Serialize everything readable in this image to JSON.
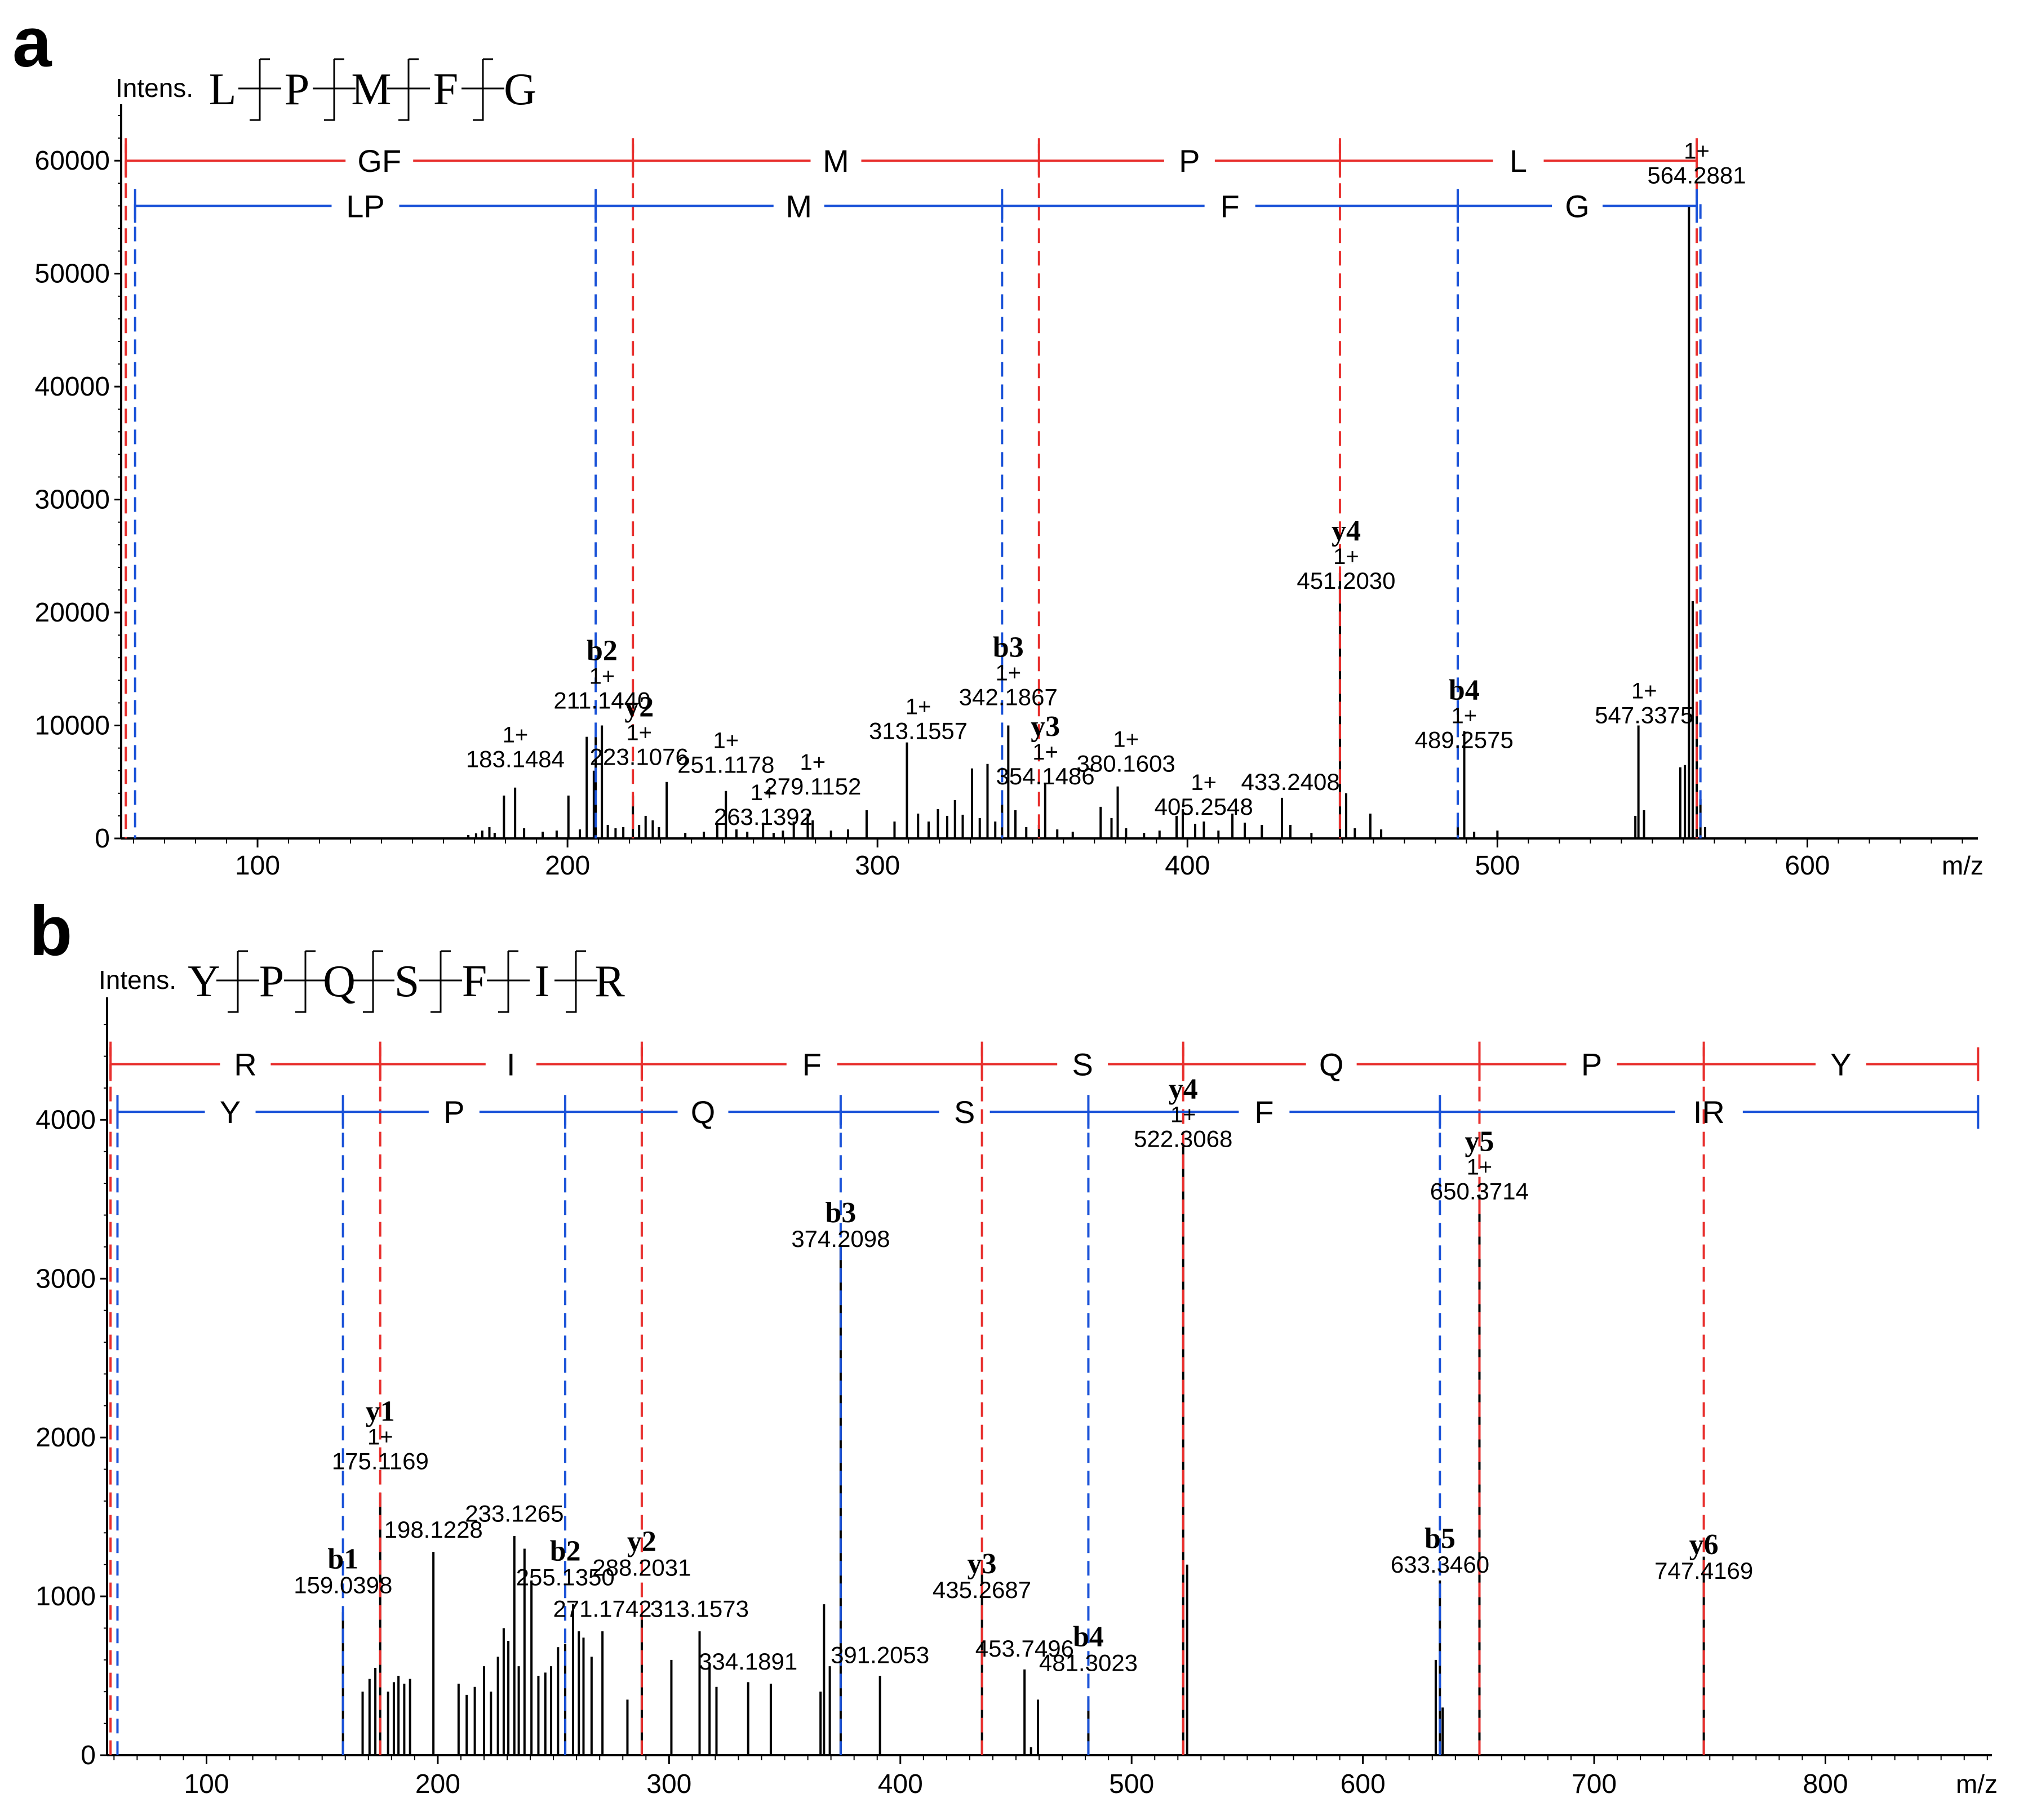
{
  "chart_data": [
    {
      "panel": "a",
      "type": "bar",
      "ylabel": "Intens.",
      "xlabel": "m/z",
      "sequence": [
        "L",
        "P",
        "M",
        "F",
        "G"
      ],
      "xlim": [
        56,
        655
      ],
      "ylim": [
        0,
        64000
      ],
      "x_ticks": [
        100,
        200,
        300,
        400,
        500,
        600
      ],
      "y_ticks": [
        0,
        10000,
        20000,
        30000,
        40000,
        50000,
        60000
      ],
      "y_ladder": {
        "color": "#e8302e",
        "y": 60000,
        "boundaries": [
          57.5,
          221.1,
          352.1,
          449.2,
          564.3
        ],
        "labels": [
          "GF",
          "M",
          "P",
          "L"
        ]
      },
      "b_ladder": {
        "color": "#1a52d8",
        "y": 56000,
        "boundaries": [
          60.5,
          209.1,
          340.2,
          487.2,
          564.3
        ],
        "labels": [
          "LP",
          "M",
          "F",
          "G"
        ]
      },
      "ion_lines": [
        {
          "x": 57.5,
          "color": "#e8302e"
        },
        {
          "x": 221.1,
          "color": "#e8302e"
        },
        {
          "x": 352.1,
          "color": "#e8302e"
        },
        {
          "x": 449.2,
          "color": "#e8302e"
        },
        {
          "x": 564.3,
          "color": "#e8302e"
        },
        {
          "x": 60.5,
          "color": "#1a52d8"
        },
        {
          "x": 209.1,
          "color": "#1a52d8"
        },
        {
          "x": 340.2,
          "color": "#1a52d8"
        },
        {
          "x": 487.2,
          "color": "#1a52d8"
        },
        {
          "x": 565.5,
          "color": "#1a52d8"
        }
      ],
      "peaks": [
        {
          "mz": 168.0,
          "i": 300
        },
        {
          "mz": 170.5,
          "i": 450
        },
        {
          "mz": 172.5,
          "i": 700
        },
        {
          "mz": 174.8,
          "i": 1000
        },
        {
          "mz": 176.5,
          "i": 500
        },
        {
          "mz": 179.5,
          "i": 3800
        },
        {
          "mz": 183.1,
          "i": 4500
        },
        {
          "mz": 186.0,
          "i": 900
        },
        {
          "mz": 192.0,
          "i": 600
        },
        {
          "mz": 196.5,
          "i": 700
        },
        {
          "mz": 200.3,
          "i": 3800
        },
        {
          "mz": 204.0,
          "i": 800
        },
        {
          "mz": 206.2,
          "i": 9000
        },
        {
          "mz": 208.5,
          "i": 6000
        },
        {
          "mz": 209.1,
          "i": 9000
        },
        {
          "mz": 211.1,
          "i": 10000
        },
        {
          "mz": 213.0,
          "i": 1200
        },
        {
          "mz": 215.5,
          "i": 900
        },
        {
          "mz": 218.0,
          "i": 1000
        },
        {
          "mz": 221.1,
          "i": 3800
        },
        {
          "mz": 223.1,
          "i": 1200
        },
        {
          "mz": 225.2,
          "i": 2000
        },
        {
          "mz": 227.5,
          "i": 1600
        },
        {
          "mz": 229.5,
          "i": 1000
        },
        {
          "mz": 232.0,
          "i": 5000
        },
        {
          "mz": 238.0,
          "i": 500
        },
        {
          "mz": 244.0,
          "i": 600
        },
        {
          "mz": 248.3,
          "i": 1200
        },
        {
          "mz": 251.1,
          "i": 4200
        },
        {
          "mz": 254.5,
          "i": 800
        },
        {
          "mz": 258.0,
          "i": 600
        },
        {
          "mz": 263.1,
          "i": 1400
        },
        {
          "mz": 266.5,
          "i": 500
        },
        {
          "mz": 269.5,
          "i": 700
        },
        {
          "mz": 273.0,
          "i": 1500
        },
        {
          "mz": 277.5,
          "i": 2200
        },
        {
          "mz": 279.1,
          "i": 1600
        },
        {
          "mz": 285.0,
          "i": 700
        },
        {
          "mz": 290.5,
          "i": 800
        },
        {
          "mz": 296.5,
          "i": 2500
        },
        {
          "mz": 305.5,
          "i": 1500
        },
        {
          "mz": 309.5,
          "i": 8500
        },
        {
          "mz": 313.1,
          "i": 2200
        },
        {
          "mz": 316.5,
          "i": 1500
        },
        {
          "mz": 319.5,
          "i": 2600
        },
        {
          "mz": 322.5,
          "i": 2000
        },
        {
          "mz": 325.0,
          "i": 3400
        },
        {
          "mz": 327.5,
          "i": 2100
        },
        {
          "mz": 330.5,
          "i": 6200
        },
        {
          "mz": 333.0,
          "i": 1800
        },
        {
          "mz": 335.5,
          "i": 6600
        },
        {
          "mz": 338.0,
          "i": 1500
        },
        {
          "mz": 340.2,
          "i": 3000
        },
        {
          "mz": 342.2,
          "i": 10000
        },
        {
          "mz": 344.5,
          "i": 2500
        },
        {
          "mz": 348.0,
          "i": 1000
        },
        {
          "mz": 352.1,
          "i": 1200
        },
        {
          "mz": 354.1,
          "i": 4800
        },
        {
          "mz": 358.0,
          "i": 800
        },
        {
          "mz": 363.0,
          "i": 600
        },
        {
          "mz": 372.0,
          "i": 2800
        },
        {
          "mz": 375.5,
          "i": 1800
        },
        {
          "mz": 377.5,
          "i": 4600
        },
        {
          "mz": 380.2,
          "i": 900
        },
        {
          "mz": 386.0,
          "i": 500
        },
        {
          "mz": 391.0,
          "i": 700
        },
        {
          "mz": 396.5,
          "i": 2000
        },
        {
          "mz": 398.5,
          "i": 2600
        },
        {
          "mz": 402.5,
          "i": 1300
        },
        {
          "mz": 405.3,
          "i": 1500
        },
        {
          "mz": 410.0,
          "i": 700
        },
        {
          "mz": 414.5,
          "i": 2200
        },
        {
          "mz": 418.5,
          "i": 1400
        },
        {
          "mz": 424.0,
          "i": 1200
        },
        {
          "mz": 430.5,
          "i": 3600
        },
        {
          "mz": 433.2,
          "i": 1200
        },
        {
          "mz": 440.0,
          "i": 500
        },
        {
          "mz": 449.2,
          "i": 23500
        },
        {
          "mz": 451.2,
          "i": 4000
        },
        {
          "mz": 454.0,
          "i": 900
        },
        {
          "mz": 459.0,
          "i": 2200
        },
        {
          "mz": 462.5,
          "i": 800
        },
        {
          "mz": 487.2,
          "i": 1100
        },
        {
          "mz": 489.3,
          "i": 9500
        },
        {
          "mz": 492.5,
          "i": 600
        },
        {
          "mz": 500.0,
          "i": 700
        },
        {
          "mz": 544.5,
          "i": 2000
        },
        {
          "mz": 545.5,
          "i": 10000
        },
        {
          "mz": 547.3,
          "i": 2500
        },
        {
          "mz": 559.0,
          "i": 6300
        },
        {
          "mz": 560.5,
          "i": 6500
        },
        {
          "mz": 561.8,
          "i": 56000
        },
        {
          "mz": 563.0,
          "i": 21000
        },
        {
          "mz": 564.3,
          "i": 12000
        },
        {
          "mz": 565.5,
          "i": 3500
        },
        {
          "mz": 567.0,
          "i": 1000
        }
      ],
      "labels": [
        {
          "mz": 183.1484,
          "y": 6300,
          "name": "",
          "charge": "1+",
          "mass": "183.1484"
        },
        {
          "mz": 211.144,
          "y": 11500,
          "name": "b2",
          "charge": "1+",
          "mass": "211.1440"
        },
        {
          "mz": 223.1076,
          "y": 6500,
          "name": "y2",
          "charge": "1+",
          "mass": "223.1076"
        },
        {
          "mz": 251.1178,
          "y": 5800,
          "name": "",
          "charge": "1+",
          "mass": "251.1178"
        },
        {
          "mz": 263.1392,
          "y": 1200,
          "name": "",
          "charge": "1+",
          "mass": "263.1392"
        },
        {
          "mz": 279.1152,
          "y": 3900,
          "name": "",
          "charge": "1+",
          "mass": "279.1152"
        },
        {
          "mz": 313.1557,
          "y": 8800,
          "name": "",
          "charge": "1+",
          "mass": "313.1557"
        },
        {
          "mz": 342.1867,
          "y": 11800,
          "name": "b3",
          "charge": "1+",
          "mass": "342.1867"
        },
        {
          "mz": 354.1486,
          "y": 4800,
          "name": "y3",
          "charge": "1+",
          "mass": "354.1486"
        },
        {
          "mz": 380.1603,
          "y": 5900,
          "name": "",
          "charge": "1+",
          "mass": "380.1603"
        },
        {
          "mz": 405.2548,
          "y": 2100,
          "name": "",
          "charge": "1+",
          "mass": "405.2548"
        },
        {
          "mz": 433.2408,
          "y": 4300,
          "name": "",
          "charge": "",
          "mass": "433.2408"
        },
        {
          "mz": 451.203,
          "y": 22100,
          "name": "y4",
          "charge": "1+",
          "mass": "451.2030"
        },
        {
          "mz": 489.2575,
          "y": 8000,
          "name": "b4",
          "charge": "1+",
          "mass": "489.2575"
        },
        {
          "mz": 547.3375,
          "y": 10200,
          "name": "",
          "charge": "1+",
          "mass": "547.3375"
        },
        {
          "mz": 564.2881,
          "y": 58000,
          "name": "",
          "charge": "1+",
          "mass": "564.2881"
        }
      ]
    },
    {
      "panel": "b",
      "type": "bar",
      "ylabel": "Intens.",
      "xlabel": "m/z",
      "sequence": [
        "Y",
        "P",
        "Q",
        "S",
        "F",
        "I",
        "R"
      ],
      "xlim": [
        57,
        872
      ],
      "ylim": [
        0,
        4700
      ],
      "x_ticks": [
        100,
        200,
        300,
        400,
        500,
        600,
        700,
        800
      ],
      "y_ticks": [
        0,
        1000,
        2000,
        3000,
        4000
      ],
      "y_ladder": {
        "color": "#e8302e",
        "y": 4350,
        "boundaries": [
          58.5,
          175.1,
          288.2,
          435.3,
          522.3,
          650.4,
          747.4,
          866.0
        ],
        "labels": [
          "R",
          "I",
          "F",
          "S",
          "Q",
          "P",
          "Y"
        ]
      },
      "b_ladder": {
        "color": "#1a52d8",
        "y": 4050,
        "boundaries": [
          61.5,
          159.0,
          255.1,
          374.2,
          481.3,
          633.3,
          866.0
        ],
        "labels": [
          "Y",
          "P",
          "Q",
          "S",
          "F",
          "IR"
        ]
      },
      "ion_lines": [
        {
          "x": 58.5,
          "color": "#e8302e"
        },
        {
          "x": 175.1,
          "color": "#e8302e"
        },
        {
          "x": 288.2,
          "color": "#e8302e"
        },
        {
          "x": 435.3,
          "color": "#e8302e"
        },
        {
          "x": 522.3,
          "color": "#e8302e"
        },
        {
          "x": 650.4,
          "color": "#e8302e"
        },
        {
          "x": 747.4,
          "color": "#e8302e"
        },
        {
          "x": 61.5,
          "color": "#1a52d8"
        },
        {
          "x": 159.0,
          "color": "#1a52d8"
        },
        {
          "x": 255.1,
          "color": "#1a52d8"
        },
        {
          "x": 374.2,
          "color": "#1a52d8"
        },
        {
          "x": 481.3,
          "color": "#1a52d8"
        },
        {
          "x": 633.3,
          "color": "#1a52d8"
        }
      ],
      "peaks": [
        {
          "mz": 159.0,
          "i": 900
        },
        {
          "mz": 167.5,
          "i": 400
        },
        {
          "mz": 170.5,
          "i": 480
        },
        {
          "mz": 173.0,
          "i": 550
        },
        {
          "mz": 175.1,
          "i": 1650
        },
        {
          "mz": 178.5,
          "i": 400
        },
        {
          "mz": 181.0,
          "i": 460
        },
        {
          "mz": 183.0,
          "i": 500
        },
        {
          "mz": 185.5,
          "i": 450
        },
        {
          "mz": 188.0,
          "i": 480
        },
        {
          "mz": 198.1,
          "i": 1280
        },
        {
          "mz": 209.0,
          "i": 450
        },
        {
          "mz": 212.5,
          "i": 380
        },
        {
          "mz": 216.0,
          "i": 430
        },
        {
          "mz": 220.0,
          "i": 560
        },
        {
          "mz": 223.0,
          "i": 400
        },
        {
          "mz": 226.0,
          "i": 620
        },
        {
          "mz": 228.5,
          "i": 800
        },
        {
          "mz": 230.5,
          "i": 720
        },
        {
          "mz": 233.1,
          "i": 1380
        },
        {
          "mz": 235.0,
          "i": 560
        },
        {
          "mz": 237.5,
          "i": 1300
        },
        {
          "mz": 240.5,
          "i": 1100
        },
        {
          "mz": 243.5,
          "i": 500
        },
        {
          "mz": 246.5,
          "i": 520
        },
        {
          "mz": 249.0,
          "i": 560
        },
        {
          "mz": 252.0,
          "i": 680
        },
        {
          "mz": 255.1,
          "i": 700
        },
        {
          "mz": 258.5,
          "i": 950
        },
        {
          "mz": 261.0,
          "i": 780
        },
        {
          "mz": 263.0,
          "i": 740
        },
        {
          "mz": 266.5,
          "i": 620
        },
        {
          "mz": 271.2,
          "i": 780
        },
        {
          "mz": 282.0,
          "i": 350
        },
        {
          "mz": 288.2,
          "i": 870
        },
        {
          "mz": 301.0,
          "i": 600
        },
        {
          "mz": 313.2,
          "i": 780
        },
        {
          "mz": 317.5,
          "i": 580
        },
        {
          "mz": 320.5,
          "i": 430
        },
        {
          "mz": 334.2,
          "i": 460
        },
        {
          "mz": 344.0,
          "i": 450
        },
        {
          "mz": 365.5,
          "i": 400
        },
        {
          "mz": 367.0,
          "i": 950
        },
        {
          "mz": 369.5,
          "i": 560
        },
        {
          "mz": 374.2,
          "i": 3200
        },
        {
          "mz": 391.2,
          "i": 500
        },
        {
          "mz": 435.3,
          "i": 1150
        },
        {
          "mz": 453.7,
          "i": 540
        },
        {
          "mz": 456.5,
          "i": 50
        },
        {
          "mz": 459.5,
          "i": 350
        },
        {
          "mz": 481.3,
          "i": 350
        },
        {
          "mz": 522.3,
          "i": 3870
        },
        {
          "mz": 524.0,
          "i": 1200
        },
        {
          "mz": 631.5,
          "i": 600
        },
        {
          "mz": 633.3,
          "i": 1100
        },
        {
          "mz": 634.5,
          "i": 300
        },
        {
          "mz": 650.4,
          "i": 3530
        },
        {
          "mz": 747.4,
          "i": 1250
        }
      ],
      "labels": [
        {
          "mz": 159.0398,
          "y": 1020,
          "name": "b1",
          "charge": "",
          "mass": "159.0398"
        },
        {
          "mz": 175.1169,
          "y": 1800,
          "name": "y1",
          "charge": "1+",
          "mass": "175.1169"
        },
        {
          "mz": 198.1228,
          "y": 1370,
          "name": "",
          "charge": "",
          "mass": "198.1228"
        },
        {
          "mz": 233.1265,
          "y": 1470,
          "name": "",
          "charge": "",
          "mass": "233.1265"
        },
        {
          "mz": 255.135,
          "y": 1070,
          "name": "b2",
          "charge": "",
          "mass": "255.1350"
        },
        {
          "mz": 288.2031,
          "y": 1130,
          "name": "y2",
          "charge": "",
          "mass": "288.2031"
        },
        {
          "mz": 271.1742,
          "y": 870,
          "name": "",
          "charge": "",
          "mass": "271.1742"
        },
        {
          "mz": 313.1573,
          "y": 870,
          "name": "",
          "charge": "",
          "mass": "313.1573"
        },
        {
          "mz": 334.1891,
          "y": 540,
          "name": "",
          "charge": "",
          "mass": "334.1891"
        },
        {
          "mz": 374.2098,
          "y": 3200,
          "name": "b3",
          "charge": "",
          "mass": "374.2098"
        },
        {
          "mz": 391.2053,
          "y": 580,
          "name": "",
          "charge": "",
          "mass": "391.2053"
        },
        {
          "mz": 435.2687,
          "y": 990,
          "name": "y3",
          "charge": "",
          "mass": "435.2687"
        },
        {
          "mz": 453.7496,
          "y": 620,
          "name": "",
          "charge": "",
          "mass": "453.7496"
        },
        {
          "mz": 481.3023,
          "y": 530,
          "name": "b4",
          "charge": "",
          "mass": "481.3023"
        },
        {
          "mz": 522.3068,
          "y": 3830,
          "name": "y4",
          "charge": "1+",
          "mass": "522.3068"
        },
        {
          "mz": 633.346,
          "y": 1150,
          "name": "b5",
          "charge": "",
          "mass": "633.3460"
        },
        {
          "mz": 650.3714,
          "y": 3500,
          "name": "y5",
          "charge": "1+",
          "mass": "650.3714"
        },
        {
          "mz": 747.4169,
          "y": 1110,
          "name": "y6",
          "charge": "",
          "mass": "747.4169"
        }
      ]
    }
  ],
  "panel_letters": [
    "a",
    "b"
  ]
}
